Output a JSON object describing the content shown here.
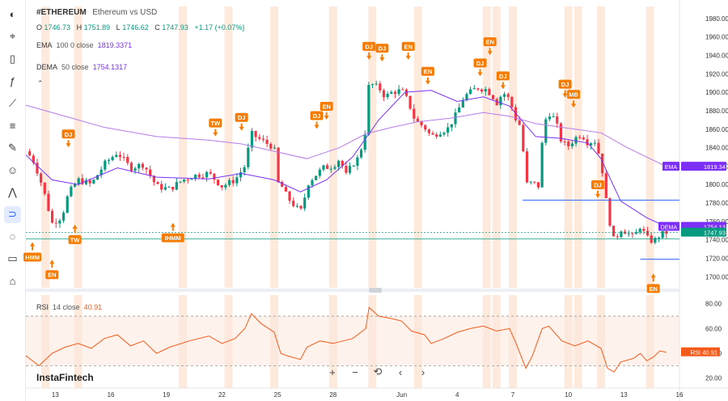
{
  "toolbar": {
    "icons": [
      "logo-icon",
      "cursor-icon",
      "candle-type-icon",
      "formula-icon",
      "trendline-icon",
      "fib-icon",
      "brush-icon",
      "emoji-icon",
      "pattern-icon",
      "magnet-icon",
      "hide-icon",
      "trash-icon",
      "home-icon"
    ]
  },
  "header": {
    "symbol": "#ETHEREUM",
    "desc": "Ethereum vs USD",
    "o_label": "O",
    "o": "1746.73",
    "h_label": "H",
    "h": "1751.89",
    "l_label": "L",
    "l": "1746.62",
    "c_label": "C",
    "c": "1747.93",
    "change": "+1.17 (+0.07%)",
    "ema_label": "EMA",
    "ema_params": "100  0  close",
    "ema_value": "1819.3371",
    "dema_label": "DEMA",
    "dema_params": "50  close",
    "dema_value": "1754.1317",
    "rsi_label": "RSI",
    "rsi_params": "14  close",
    "rsi_value": "40.91"
  },
  "brand": "InstaFintech",
  "nav": {
    "zoom_in": "+",
    "zoom_out": "−",
    "reset": "⟲",
    "back": "‹",
    "forward": "›"
  },
  "colors": {
    "up": "#089981",
    "down": "#f23645",
    "ema": "#b57be8",
    "dema": "#7b2ff7",
    "rsi": "#f45b1a",
    "marker": "#f57c00",
    "session": "#fde2d2",
    "hline": "#2962ff",
    "price": "#089981"
  },
  "chart_data": {
    "type": "candlestick",
    "x_ticks": [
      "13",
      "16",
      "19",
      "22",
      "25",
      "28",
      "Jun",
      "4",
      "7",
      "10",
      "13",
      "16"
    ],
    "y_ticks": [
      1980,
      1960,
      1940,
      1920,
      1900,
      1880,
      1860,
      1840,
      1820,
      1800,
      1780,
      1760,
      1740,
      1720,
      1700
    ],
    "ylim": [
      1688,
      1993
    ],
    "rsi_ticks": [
      80,
      60,
      40,
      20
    ],
    "rsi_ylim": [
      12,
      87
    ],
    "rsi_band": [
      30,
      70
    ],
    "price_tags": [
      {
        "label": "EMA",
        "value": "1819.34",
        "price": 1819.34,
        "color": "#7b2ff7"
      },
      {
        "label": "DEMA",
        "value": "1754.13",
        "price": 1754.13,
        "color": "#7b2ff7"
      },
      {
        "label": "",
        "value": "1747.93",
        "price": 1747.93,
        "color": "#089981"
      }
    ],
    "rsi_tag": {
      "label": "RSI",
      "value": "40.91"
    },
    "h_lines": [
      {
        "price": 1783,
        "from": 0.76,
        "to": 1.0
      },
      {
        "price": 1719,
        "from": 0.94,
        "to": 1.0
      }
    ],
    "markers": [
      {
        "label": "HMM",
        "t": 0.01,
        "price": 1741,
        "side": "below"
      },
      {
        "label": "EN",
        "t": 0.04,
        "price": 1722,
        "side": "below"
      },
      {
        "label": "DJ",
        "t": 0.065,
        "price": 1835,
        "side": "above"
      },
      {
        "label": "TW",
        "t": 0.075,
        "price": 1760,
        "side": "below"
      },
      {
        "label": "IHMM",
        "t": 0.225,
        "price": 1762,
        "side": "below"
      },
      {
        "label": "TW",
        "t": 0.29,
        "price": 1847,
        "side": "above"
      },
      {
        "label": "DJ",
        "t": 0.33,
        "price": 1853,
        "side": "above"
      },
      {
        "label": "DJ",
        "t": 0.445,
        "price": 1855,
        "side": "above"
      },
      {
        "label": "EN",
        "t": 0.46,
        "price": 1865,
        "side": "above"
      },
      {
        "label": "DJ",
        "t": 0.525,
        "price": 1930,
        "side": "above"
      },
      {
        "label": "DJ",
        "t": 0.545,
        "price": 1928,
        "side": "above"
      },
      {
        "label": "EN",
        "t": 0.585,
        "price": 1930,
        "side": "above"
      },
      {
        "label": "EN",
        "t": 0.615,
        "price": 1903,
        "side": "above"
      },
      {
        "label": "DJ",
        "t": 0.695,
        "price": 1912,
        "side": "above"
      },
      {
        "label": "EN",
        "t": 0.71,
        "price": 1935,
        "side": "above"
      },
      {
        "label": "DJ",
        "t": 0.73,
        "price": 1898,
        "side": "above"
      },
      {
        "label": "DJ",
        "t": 0.825,
        "price": 1889,
        "side": "above"
      },
      {
        "label": "MB",
        "t": 0.838,
        "price": 1878,
        "side": "above"
      },
      {
        "label": "DJ",
        "t": 0.875,
        "price": 1780,
        "side": "above"
      },
      {
        "label": "EN",
        "t": 0.96,
        "price": 1707,
        "side": "below"
      }
    ],
    "sessions": [
      0.03,
      0.08,
      0.24,
      0.31,
      0.38,
      0.47,
      0.53,
      0.6,
      0.705,
      0.72,
      0.745,
      0.83,
      0.845,
      0.88,
      0.955
    ],
    "waypoints": [
      [
        0,
        1836
      ],
      [
        0.01,
        1828
      ],
      [
        0.02,
        1810
      ],
      [
        0.03,
        1786
      ],
      [
        0.04,
        1758
      ],
      [
        0.055,
        1765
      ],
      [
        0.065,
        1790
      ],
      [
        0.08,
        1805
      ],
      [
        0.1,
        1800
      ],
      [
        0.12,
        1822
      ],
      [
        0.14,
        1835
      ],
      [
        0.16,
        1818
      ],
      [
        0.18,
        1822
      ],
      [
        0.2,
        1798
      ],
      [
        0.22,
        1795
      ],
      [
        0.24,
        1805
      ],
      [
        0.26,
        1810
      ],
      [
        0.28,
        1812
      ],
      [
        0.3,
        1798
      ],
      [
        0.32,
        1805
      ],
      [
        0.335,
        1820
      ],
      [
        0.345,
        1855
      ],
      [
        0.36,
        1848
      ],
      [
        0.38,
        1840
      ],
      [
        0.385,
        1802
      ],
      [
        0.39,
        1800
      ],
      [
        0.4,
        1786
      ],
      [
        0.41,
        1778
      ],
      [
        0.42,
        1770
      ],
      [
        0.425,
        1780
      ],
      [
        0.43,
        1800
      ],
      [
        0.44,
        1808
      ],
      [
        0.455,
        1818
      ],
      [
        0.47,
        1820
      ],
      [
        0.48,
        1828
      ],
      [
        0.49,
        1810
      ],
      [
        0.5,
        1822
      ],
      [
        0.51,
        1830
      ],
      [
        0.52,
        1860
      ],
      [
        0.525,
        1910
      ],
      [
        0.54,
        1905
      ],
      [
        0.55,
        1895
      ],
      [
        0.56,
        1900
      ],
      [
        0.575,
        1902
      ],
      [
        0.585,
        1890
      ],
      [
        0.595,
        1870
      ],
      [
        0.61,
        1862
      ],
      [
        0.62,
        1852
      ],
      [
        0.635,
        1858
      ],
      [
        0.645,
        1860
      ],
      [
        0.66,
        1878
      ],
      [
        0.67,
        1895
      ],
      [
        0.69,
        1905
      ],
      [
        0.705,
        1903
      ],
      [
        0.715,
        1895
      ],
      [
        0.72,
        1888
      ],
      [
        0.73,
        1900
      ],
      [
        0.74,
        1892
      ],
      [
        0.75,
        1870
      ],
      [
        0.758,
        1862
      ],
      [
        0.765,
        1800
      ],
      [
        0.775,
        1802
      ],
      [
        0.785,
        1798
      ],
      [
        0.792,
        1865
      ],
      [
        0.8,
        1878
      ],
      [
        0.81,
        1870
      ],
      [
        0.82,
        1845
      ],
      [
        0.83,
        1842
      ],
      [
        0.84,
        1850
      ],
      [
        0.85,
        1855
      ],
      [
        0.86,
        1845
      ],
      [
        0.87,
        1848
      ],
      [
        0.88,
        1826
      ],
      [
        0.89,
        1770
      ],
      [
        0.9,
        1738
      ],
      [
        0.91,
        1752
      ],
      [
        0.92,
        1748
      ],
      [
        0.93,
        1742
      ],
      [
        0.94,
        1755
      ],
      [
        0.95,
        1742
      ],
      [
        0.96,
        1738
      ],
      [
        0.97,
        1745
      ],
      [
        0.98,
        1747.93
      ]
    ],
    "ema_points": [
      [
        0,
        1886
      ],
      [
        0.05,
        1876
      ],
      [
        0.12,
        1862
      ],
      [
        0.2,
        1852
      ],
      [
        0.28,
        1848
      ],
      [
        0.33,
        1844
      ],
      [
        0.38,
        1836
      ],
      [
        0.43,
        1828
      ],
      [
        0.48,
        1840
      ],
      [
        0.52,
        1855
      ],
      [
        0.56,
        1862
      ],
      [
        0.6,
        1868
      ],
      [
        0.65,
        1872
      ],
      [
        0.7,
        1878
      ],
      [
        0.74,
        1874
      ],
      [
        0.78,
        1866
      ],
      [
        0.84,
        1860
      ],
      [
        0.88,
        1856
      ],
      [
        0.92,
        1840
      ],
      [
        0.98,
        1819.34
      ]
    ],
    "dema_points": [
      [
        0,
        1832
      ],
      [
        0.04,
        1805
      ],
      [
        0.08,
        1800
      ],
      [
        0.14,
        1818
      ],
      [
        0.2,
        1808
      ],
      [
        0.28,
        1806
      ],
      [
        0.33,
        1812
      ],
      [
        0.38,
        1805
      ],
      [
        0.42,
        1792
      ],
      [
        0.46,
        1805
      ],
      [
        0.5,
        1830
      ],
      [
        0.54,
        1870
      ],
      [
        0.58,
        1900
      ],
      [
        0.62,
        1902
      ],
      [
        0.66,
        1890
      ],
      [
        0.7,
        1895
      ],
      [
        0.74,
        1885
      ],
      [
        0.78,
        1852
      ],
      [
        0.82,
        1850
      ],
      [
        0.86,
        1845
      ],
      [
        0.88,
        1828
      ],
      [
        0.91,
        1782
      ],
      [
        0.95,
        1764
      ],
      [
        0.98,
        1754.13
      ]
    ],
    "rsi_points": [
      [
        0,
        38
      ],
      [
        0.02,
        30
      ],
      [
        0.04,
        40
      ],
      [
        0.06,
        45
      ],
      [
        0.08,
        48
      ],
      [
        0.1,
        44
      ],
      [
        0.12,
        52
      ],
      [
        0.14,
        55
      ],
      [
        0.16,
        46
      ],
      [
        0.18,
        50
      ],
      [
        0.2,
        40
      ],
      [
        0.22,
        45
      ],
      [
        0.25,
        50
      ],
      [
        0.28,
        54
      ],
      [
        0.3,
        48
      ],
      [
        0.32,
        52
      ],
      [
        0.335,
        60
      ],
      [
        0.345,
        72
      ],
      [
        0.36,
        64
      ],
      [
        0.38,
        57
      ],
      [
        0.39,
        40
      ],
      [
        0.4,
        38
      ],
      [
        0.42,
        35
      ],
      [
        0.43,
        45
      ],
      [
        0.45,
        50
      ],
      [
        0.47,
        48
      ],
      [
        0.5,
        52
      ],
      [
        0.52,
        60
      ],
      [
        0.525,
        77
      ],
      [
        0.54,
        70
      ],
      [
        0.56,
        68
      ],
      [
        0.575,
        66
      ],
      [
        0.59,
        58
      ],
      [
        0.61,
        55
      ],
      [
        0.62,
        48
      ],
      [
        0.64,
        52
      ],
      [
        0.66,
        57
      ],
      [
        0.68,
        60
      ],
      [
        0.7,
        62
      ],
      [
        0.72,
        58
      ],
      [
        0.74,
        60
      ],
      [
        0.75,
        48
      ],
      [
        0.765,
        28
      ],
      [
        0.775,
        38
      ],
      [
        0.79,
        60
      ],
      [
        0.8,
        62
      ],
      [
        0.82,
        50
      ],
      [
        0.84,
        46
      ],
      [
        0.86,
        50
      ],
      [
        0.88,
        44
      ],
      [
        0.89,
        28
      ],
      [
        0.9,
        25
      ],
      [
        0.91,
        33
      ],
      [
        0.93,
        36
      ],
      [
        0.94,
        40
      ],
      [
        0.95,
        34
      ],
      [
        0.96,
        37
      ],
      [
        0.97,
        42
      ],
      [
        0.98,
        40.91
      ]
    ]
  }
}
